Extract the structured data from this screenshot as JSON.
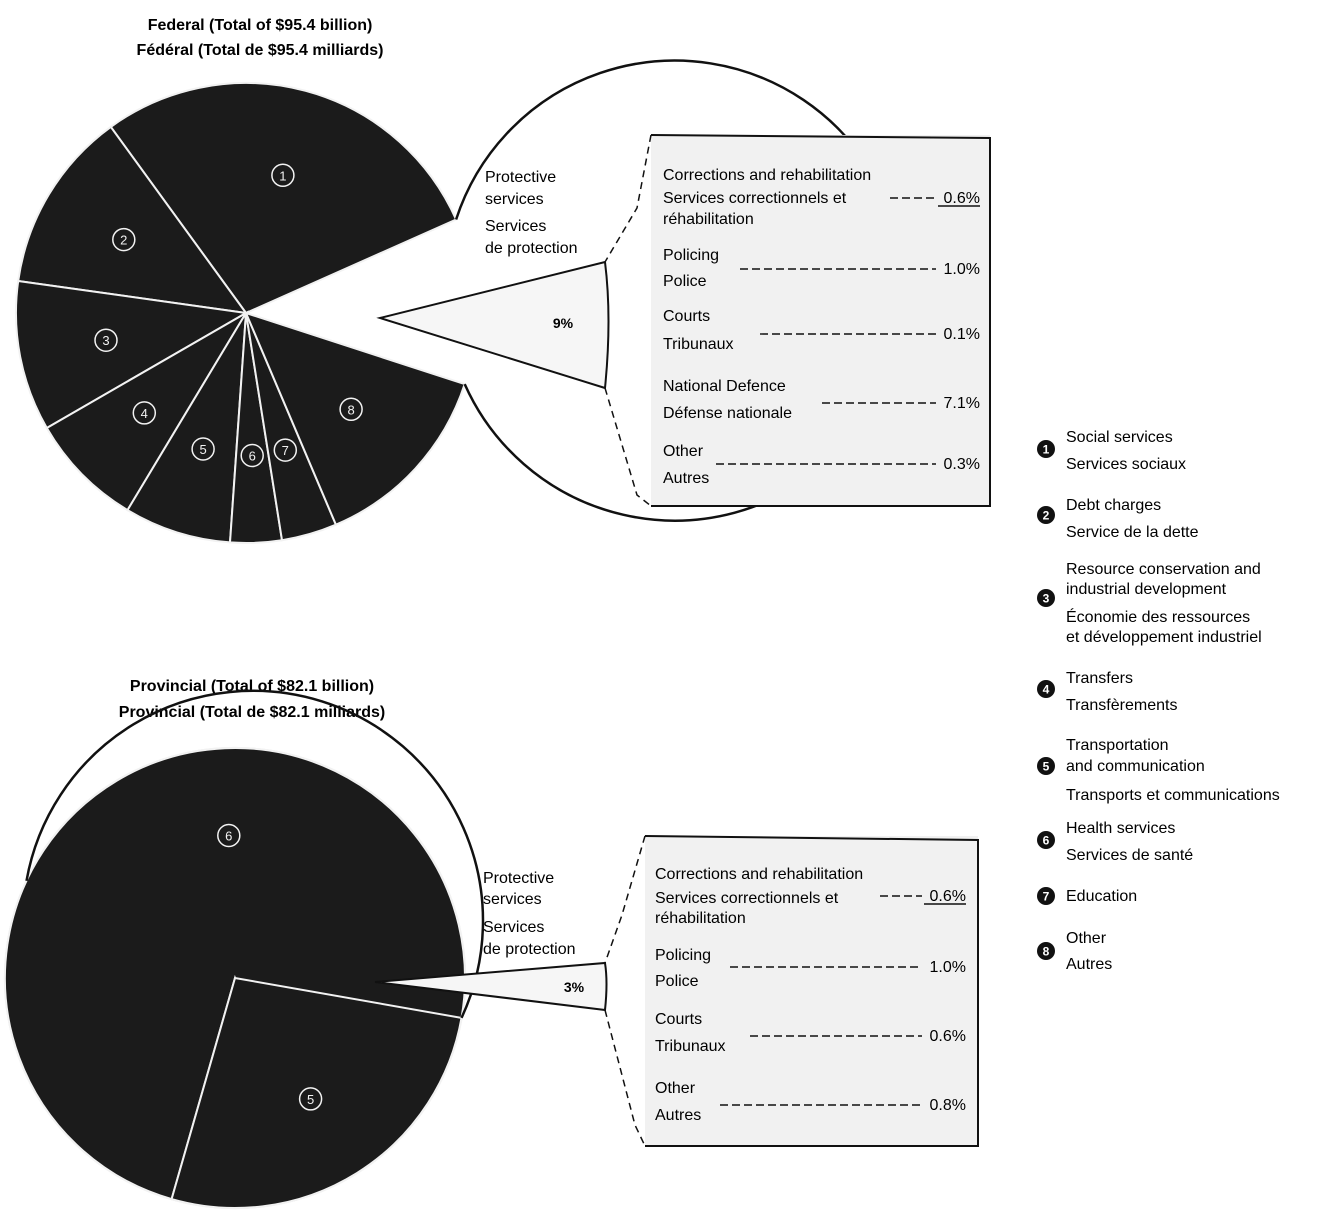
{
  "colors": {
    "slice": "#1b1b1b",
    "slice_edge": "#f2f2f2",
    "box_fill": "#f1f1f1",
    "ink": "#111111"
  },
  "chart_data": [
    {
      "type": "pie",
      "title": "Federal (Total of $95.4 billion)",
      "subtitle": "Fédéral (Total de $95.4 milliards)",
      "slices": [
        {
          "key": "1",
          "label": ""
        },
        {
          "key": "2",
          "label": ""
        },
        {
          "key": "3",
          "label": ""
        },
        {
          "key": "4",
          "label": ""
        },
        {
          "key": "5",
          "label": ""
        },
        {
          "key": "6",
          "label": ""
        },
        {
          "key": "7",
          "label": ""
        },
        {
          "key": "8",
          "label": ""
        }
      ],
      "exploded_slice": {
        "label_lines": [
          "Protective",
          "services",
          "Services",
          "de protection"
        ],
        "value": 9,
        "value_label": "9%"
      },
      "breakdown": [
        {
          "label": "Corrections and rehabilitation",
          "label_fr": [
            "Services correctionnels et",
            "réhabilitation"
          ],
          "value": 0.6,
          "value_label": "0.6%"
        },
        {
          "label": "Policing",
          "label_fr": [
            "Police"
          ],
          "value": 1.0,
          "value_label": "1.0%"
        },
        {
          "label": "Courts",
          "label_fr": [
            "Tribunaux"
          ],
          "value": 0.1,
          "value_label": "0.1%"
        },
        {
          "label": "National Defence",
          "label_fr": [
            "Défense nationale"
          ],
          "value": 7.1,
          "value_label": "7.1%"
        },
        {
          "label": "Other",
          "label_fr": [
            "Autres"
          ],
          "value": 0.3,
          "value_label": "0.3%"
        }
      ]
    },
    {
      "type": "pie",
      "title": "Provincial (Total of $82.1 billion)",
      "subtitle": "Provincial (Total de $82.1 milliards)",
      "slices": [
        {
          "key": "4",
          "label": ""
        },
        {
          "key": "3",
          "label": ""
        },
        {
          "key": "2",
          "label": ""
        },
        {
          "key": "1",
          "label": ""
        },
        {
          "key": "8",
          "label": ""
        },
        {
          "key": "7",
          "label": ""
        },
        {
          "key": "6",
          "label": ""
        },
        {
          "key": "5",
          "label": ""
        }
      ],
      "exploded_slice": {
        "label_lines": [
          "Protective",
          "services",
          "Services",
          "de protection"
        ],
        "value": 3,
        "value_label": "3%"
      },
      "breakdown": [
        {
          "label": "Corrections and rehabilitation",
          "label_fr": [
            "Services correctionnels et",
            "réhabilitation"
          ],
          "value": 0.6,
          "value_label": "0.6%"
        },
        {
          "label": "Policing",
          "label_fr": [
            "Police"
          ],
          "value": 1.0,
          "value_label": "1.0%"
        },
        {
          "label": "Courts",
          "label_fr": [
            "Tribunaux"
          ],
          "value": 0.6,
          "value_label": "0.6%"
        },
        {
          "label": "Other",
          "label_fr": [
            "Autres"
          ],
          "value": 0.8,
          "value_label": "0.8%"
        }
      ]
    }
  ],
  "legend": [
    {
      "num": "1",
      "lines": [
        "Social services",
        "Services sociaux"
      ]
    },
    {
      "num": "2",
      "lines": [
        "Debt charges",
        "Service de la dette"
      ]
    },
    {
      "num": "3",
      "lines": [
        "Resource conservation and",
        "industrial development",
        "Économie des ressources",
        "et développement industriel"
      ]
    },
    {
      "num": "4",
      "lines": [
        "Transfers",
        "Transfèrements"
      ]
    },
    {
      "num": "5",
      "lines": [
        "Transportation",
        "and communication",
        "Transports et communications"
      ]
    },
    {
      "num": "6",
      "lines": [
        "Health services",
        "Services de santé"
      ]
    },
    {
      "num": "7",
      "lines": [
        "Education"
      ]
    },
    {
      "num": "8",
      "lines": [
        "Other",
        "Autres"
      ]
    }
  ]
}
